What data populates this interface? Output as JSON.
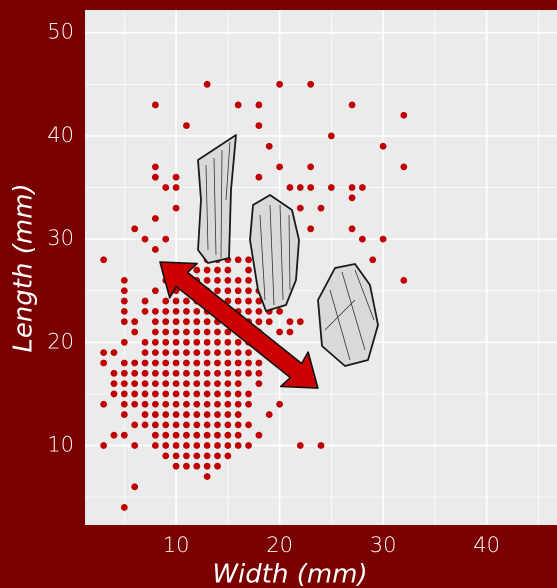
{
  "chart_data": {
    "type": "scatter",
    "x_label": "Width (mm)",
    "y_label": "Length (mm)",
    "color": "#c00000",
    "xlim": [
      1.2,
      46.8
    ],
    "ylim": [
      2.3,
      52.2
    ],
    "xticks": [
      10,
      20,
      30,
      40
    ],
    "yticks": [
      10,
      20,
      30,
      40,
      50
    ],
    "x_minor_ticks": [
      5,
      15,
      25,
      35,
      45
    ],
    "y_minor_ticks": [
      5,
      15,
      25,
      35,
      45
    ],
    "grid": true,
    "x": [
      3,
      5,
      6,
      8,
      11,
      13,
      16,
      18,
      18,
      19,
      20,
      23,
      25,
      27,
      32,
      30,
      32,
      32,
      18,
      20,
      23,
      21,
      22,
      23,
      25,
      27,
      28,
      27,
      22,
      24,
      20,
      23,
      27,
      30,
      28,
      29,
      6,
      8,
      8,
      8,
      9,
      10,
      10,
      10,
      8,
      9,
      7,
      13,
      14,
      15,
      16,
      17,
      11,
      12,
      13,
      14,
      15,
      17,
      18,
      19,
      5,
      9,
      10,
      11,
      12,
      13,
      14,
      15,
      16,
      17,
      18,
      19,
      5,
      8,
      10,
      11,
      12,
      13,
      14,
      15,
      16,
      17,
      18,
      19,
      20,
      5,
      7,
      9,
      10,
      11,
      12,
      13,
      14,
      15,
      16,
      17,
      18,
      19,
      20,
      5,
      7,
      8,
      9,
      10,
      11,
      12,
      13,
      14,
      15,
      16,
      17,
      18,
      19,
      20,
      5,
      6,
      8,
      9,
      10,
      11,
      12,
      13,
      14,
      15,
      16,
      17,
      18,
      19,
      21,
      22,
      6,
      8,
      9,
      10,
      11,
      12,
      13,
      14,
      15,
      16,
      17,
      18,
      20,
      21,
      5,
      7,
      8,
      9,
      10,
      11,
      12,
      13,
      14,
      15,
      16,
      17,
      18,
      3,
      4,
      7,
      8,
      9,
      10,
      11,
      12,
      13,
      14,
      15,
      16,
      17,
      3,
      5,
      6,
      7,
      8,
      9,
      10,
      11,
      12,
      13,
      14,
      15,
      16,
      17,
      18,
      4,
      5,
      6,
      7,
      8,
      9,
      10,
      11,
      12,
      13,
      14,
      15,
      16,
      17,
      18,
      4,
      5,
      6,
      7,
      8,
      9,
      10,
      11,
      12,
      13,
      14,
      15,
      16,
      18,
      4,
      5,
      6,
      7,
      8,
      9,
      10,
      11,
      12,
      13,
      14,
      15,
      16,
      17,
      3,
      5,
      6,
      7,
      8,
      9,
      10,
      11,
      12,
      13,
      14,
      15,
      16,
      17,
      20,
      5,
      7,
      8,
      9,
      10,
      11,
      12,
      13,
      14,
      15,
      16,
      19,
      6,
      7,
      8,
      9,
      10,
      11,
      12,
      13,
      14,
      15,
      16,
      17,
      4,
      5,
      8,
      9,
      10,
      11,
      12,
      13,
      14,
      15,
      16,
      18,
      3,
      6,
      8,
      9,
      10,
      11,
      12,
      13,
      14,
      15,
      16,
      17,
      22,
      24,
      9,
      10,
      11,
      12,
      13,
      14,
      15,
      10,
      11,
      12,
      13,
      14,
      13
    ],
    "values": [
      28,
      4,
      6,
      43,
      41,
      45,
      43,
      43,
      41,
      39,
      45,
      45,
      40,
      43,
      42,
      39,
      37,
      26,
      36,
      37,
      37,
      35,
      35,
      35,
      35,
      35,
      35,
      34,
      33,
      33,
      33,
      31,
      31,
      30,
      30,
      28,
      31,
      36,
      37,
      32,
      35,
      35,
      36,
      33,
      29,
      30,
      30,
      28,
      28,
      28,
      28,
      28,
      27,
      27,
      27,
      27,
      27,
      27,
      27,
      27,
      26,
      26,
      26,
      26,
      26,
      26,
      26,
      26,
      26,
      26,
      26,
      26,
      25,
      25,
      25,
      25,
      25,
      25,
      25,
      25,
      25,
      25,
      25,
      25,
      25,
      24,
      24,
      24,
      24,
      24,
      24,
      24,
      24,
      24,
      24,
      24,
      24,
      24,
      24,
      23,
      23,
      23,
      23,
      23,
      23,
      23,
      23,
      23,
      23,
      23,
      23,
      23,
      23,
      23,
      22,
      22,
      22,
      22,
      22,
      22,
      22,
      22,
      22,
      22,
      22,
      22,
      22,
      22,
      22,
      22,
      21,
      21,
      21,
      21,
      21,
      21,
      21,
      21,
      21,
      21,
      21,
      21,
      21,
      21,
      20,
      20,
      20,
      20,
      20,
      20,
      20,
      20,
      20,
      20,
      20,
      20,
      20,
      19,
      19,
      19,
      19,
      19,
      19,
      19,
      19,
      19,
      19,
      19,
      19,
      19,
      18,
      18,
      18,
      18,
      18,
      18,
      18,
      18,
      18,
      18,
      18,
      18,
      18,
      18,
      18,
      17,
      17,
      17,
      17,
      17,
      17,
      17,
      17,
      17,
      17,
      17,
      17,
      17,
      17,
      17,
      16,
      16,
      16,
      16,
      16,
      16,
      16,
      16,
      16,
      16,
      16,
      16,
      16,
      16,
      15,
      15,
      15,
      15,
      15,
      15,
      15,
      15,
      15,
      15,
      15,
      15,
      15,
      15,
      14,
      14,
      14,
      14,
      14,
      14,
      14,
      14,
      14,
      14,
      14,
      14,
      14,
      14,
      14,
      13,
      13,
      13,
      13,
      13,
      13,
      13,
      13,
      13,
      13,
      13,
      13,
      12,
      12,
      12,
      12,
      12,
      12,
      12,
      12,
      12,
      12,
      12,
      12,
      11,
      11,
      11,
      11,
      11,
      11,
      11,
      11,
      11,
      11,
      11,
      11,
      10,
      10,
      10,
      10,
      10,
      10,
      10,
      10,
      10,
      10,
      10,
      10,
      10,
      10,
      9,
      9,
      9,
      9,
      9,
      9,
      9,
      8,
      8,
      8,
      8,
      8,
      7
    ]
  }
}
